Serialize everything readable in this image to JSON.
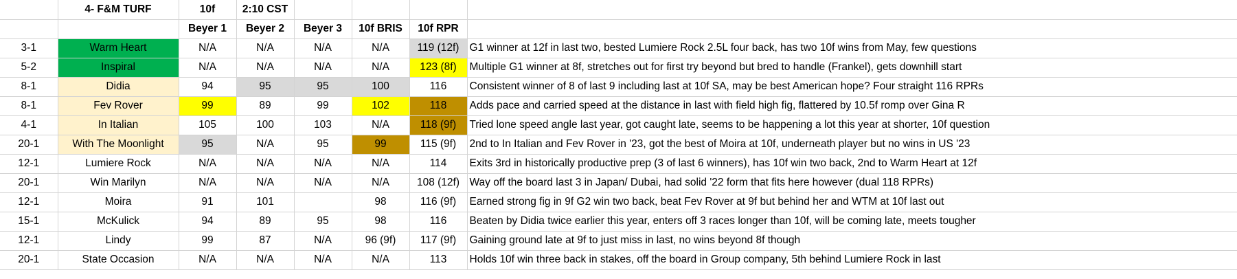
{
  "colors": {
    "green": "#00B050",
    "tan": "#FFF2CC",
    "yellow": "#FFFF00",
    "gray": "#D9D9D9",
    "gold": "#BF8F00"
  },
  "header_row1": [
    "",
    "4- F&M TURF",
    "10f",
    "2:10 CST",
    "",
    "",
    "",
    ""
  ],
  "header_row2": [
    "",
    "",
    "Beyer 1",
    "Beyer 2",
    "Beyer 3",
    "10f BRIS",
    "10f RPR",
    ""
  ],
  "rows": [
    {
      "cells": [
        "3-1",
        "Warm Heart",
        "N/A",
        "N/A",
        "N/A",
        "N/A",
        "119 (12f)",
        "G1 winner at 12f in last two, bested Lumiere Rock 2.5L four back, has two 10f wins from May, few questions"
      ],
      "fills": {
        "1": "green",
        "6": "gray"
      }
    },
    {
      "cells": [
        "5-2",
        "Inspiral",
        "N/A",
        "N/A",
        "N/A",
        "N/A",
        "123 (8f)",
        "Multiple G1 winner at 8f, stretches out for first try beyond but bred to handle (Frankel), gets downhill start"
      ],
      "fills": {
        "1": "green",
        "6": "yellow"
      }
    },
    {
      "cells": [
        "8-1",
        "Didia",
        "94",
        "95",
        "95",
        "100",
        "116",
        "Consistent winner of 8 of last 9 including last at 10f SA, may be best American hope? Four straight 116 RPRs"
      ],
      "fills": {
        "1": "tan",
        "3": "gray",
        "4": "gray",
        "5": "gray"
      }
    },
    {
      "cells": [
        "8-1",
        "Fev Rover",
        "99",
        "89",
        "99",
        "102",
        "118",
        "Adds pace and carried speed at the distance in last with field high fig, flattered by 10.5f romp over Gina R"
      ],
      "fills": {
        "1": "tan",
        "2": "yellow",
        "5": "yellow",
        "6": "gold"
      }
    },
    {
      "cells": [
        "4-1",
        "In Italian",
        "105",
        "100",
        "103",
        "N/A",
        "118 (9f)",
        "Tried lone speed angle last year, got caught late, seems to be happening a lot this year at shorter, 10f question"
      ],
      "fills": {
        "1": "tan",
        "6": "gold"
      }
    },
    {
      "cells": [
        "20-1",
        "With The Moonlight",
        "95",
        "N/A",
        "95",
        "99",
        "115 (9f)",
        "2nd to In Italian and Fev Rover in '23, got the best of Moira at 10f, underneath player but no wins in US '23"
      ],
      "fills": {
        "1": "tan",
        "2": "gray",
        "5": "gold"
      }
    },
    {
      "cells": [
        "12-1",
        "Lumiere Rock",
        "N/A",
        "N/A",
        "N/A",
        "N/A",
        "114",
        "Exits 3rd in historically productive prep (3 of last 6 winners), has 10f win two back, 2nd to Warm Heart at 12f"
      ],
      "fills": {}
    },
    {
      "cells": [
        "20-1",
        "Win Marilyn",
        "N/A",
        "N/A",
        "N/A",
        "N/A",
        "108 (12f)",
        "Way off the board last 3 in Japan/ Dubai, had solid '22 form that fits here however (dual 118 RPRs)"
      ],
      "fills": {}
    },
    {
      "cells": [
        "12-1",
        "Moira",
        "91",
        "101",
        "",
        "98",
        "116 (9f)",
        "Earned strong fig in 9f G2 win two back, beat Fev Rover at 9f but behind her and WTM at 10f last out"
      ],
      "fills": {}
    },
    {
      "cells": [
        "15-1",
        "McKulick",
        "94",
        "89",
        "95",
        "98",
        "116",
        "Beaten by Didia twice earlier this year, enters off 3 races longer than 10f, will be coming late, meets tougher"
      ],
      "fills": {}
    },
    {
      "cells": [
        "12-1",
        "Lindy",
        "99",
        "87",
        "N/A",
        "96 (9f)",
        "117 (9f)",
        "Gaining ground late at 9f to just miss in last, no wins beyond 8f though"
      ],
      "fills": {}
    },
    {
      "cells": [
        "20-1",
        "State Occasion",
        "N/A",
        "N/A",
        "N/A",
        "N/A",
        "113",
        "Holds 10f win three back in stakes, off the board in Group company, 5th behind Lumiere Rock in last"
      ],
      "fills": {}
    }
  ]
}
